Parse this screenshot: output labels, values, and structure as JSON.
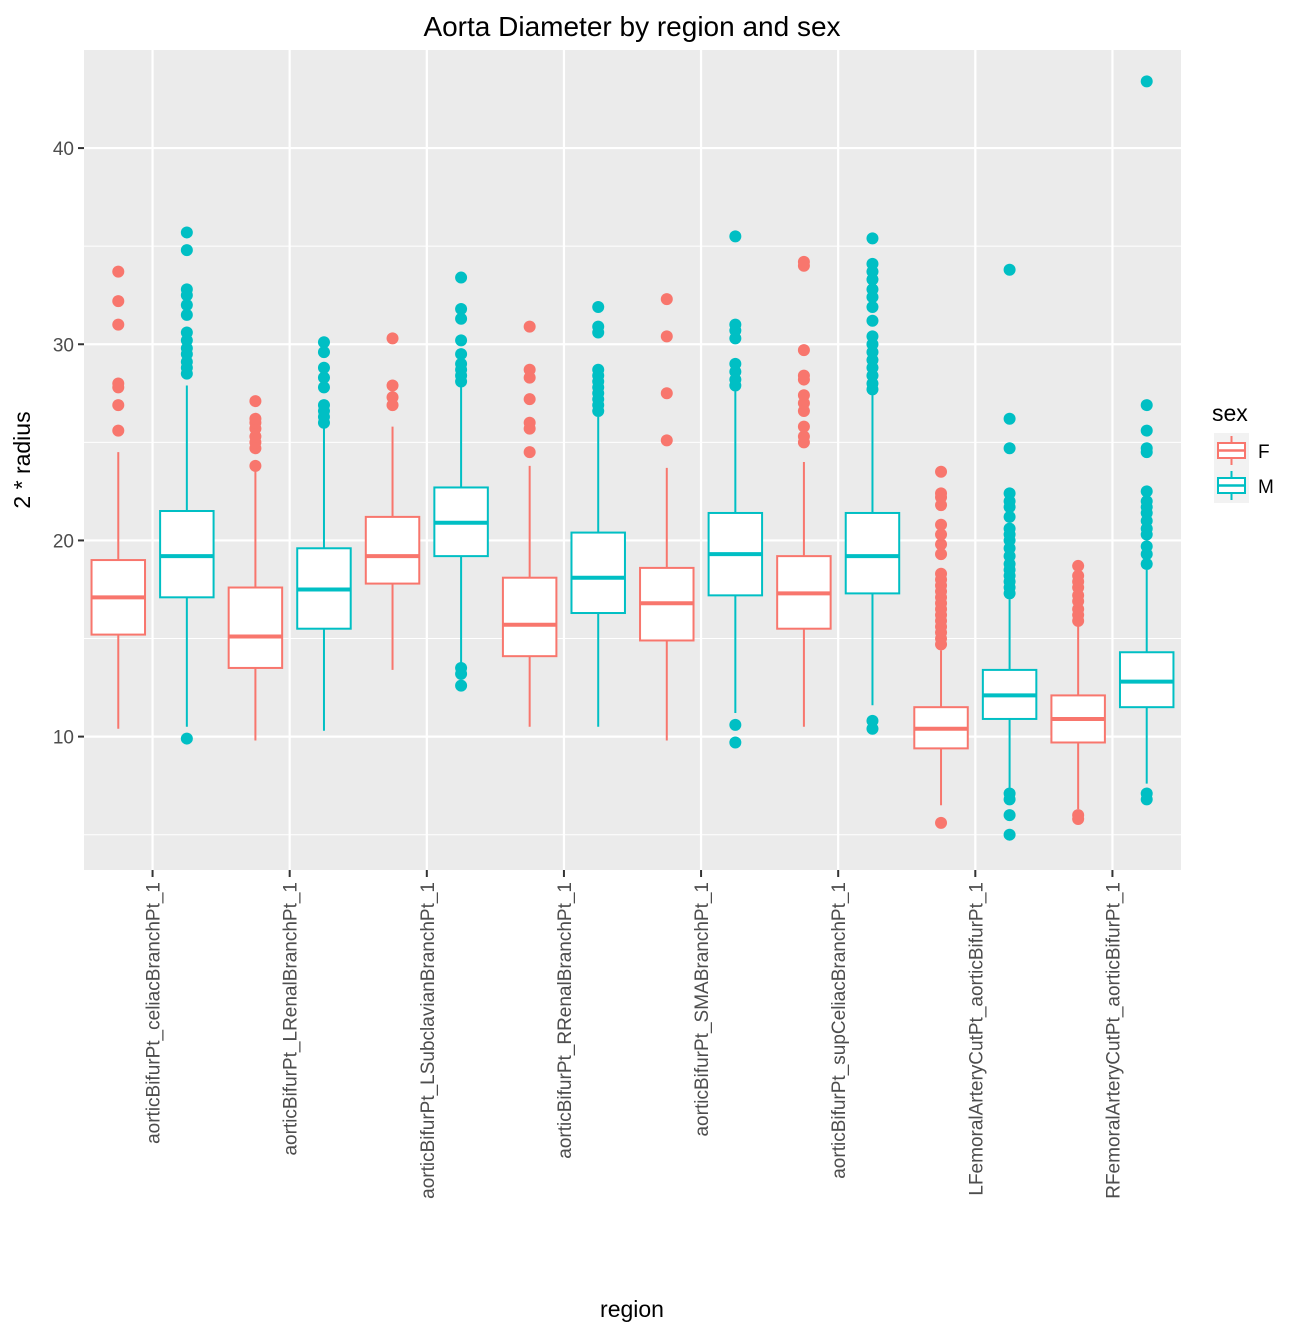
{
  "chart_data": {
    "type": "boxplot",
    "title": "Aorta Diameter by region and sex",
    "xlabel": "region",
    "ylabel": "2 * radius",
    "ylim": [
      3.2,
      45.0
    ],
    "yticks": [
      10,
      20,
      30,
      40
    ],
    "y_minor_ticks": [
      5,
      15,
      25,
      35
    ],
    "grid": true,
    "legend": {
      "title": "sex",
      "position": "right",
      "entries": [
        {
          "label": "F",
          "color": "#F8766D"
        },
        {
          "label": "M",
          "color": "#00BFC4"
        }
      ]
    },
    "categories": [
      "aorticBifurPt_celiacBranchPt_1",
      "aorticBifurPt_LRenalBranchPt_1",
      "aorticBifurPt_LSubclavianBranchPt_1",
      "aorticBifurPt_RRenalBranchPt_1",
      "aorticBifurPt_SMABranchPt_1",
      "aorticBifurPt_supCeliacBranchPt_1",
      "LFemoralArteryCutPt_aorticBifurPt_1",
      "RFemoralArteryCutPt_aorticBifurPt_1"
    ],
    "series": [
      {
        "name": "F",
        "color": "#F8766D",
        "boxes": [
          {
            "whisker_low": 10.4,
            "q1": 15.2,
            "median": 17.1,
            "q3": 19.0,
            "whisker_high": 24.5,
            "outliers": [
              25.6,
              26.9,
              27.8,
              28.0,
              31.0,
              32.2,
              33.7
            ]
          },
          {
            "whisker_low": 9.8,
            "q1": 13.5,
            "median": 15.1,
            "q3": 17.6,
            "whisker_high": 23.6,
            "outliers": [
              23.8,
              24.7,
              25.0,
              25.3,
              25.7,
              26.0,
              26.2,
              27.1
            ]
          },
          {
            "whisker_low": 13.4,
            "q1": 17.8,
            "median": 19.2,
            "q3": 21.2,
            "whisker_high": 25.8,
            "outliers": [
              26.9,
              27.3,
              27.9,
              30.3
            ]
          },
          {
            "whisker_low": 10.5,
            "q1": 14.1,
            "median": 15.7,
            "q3": 18.1,
            "whisker_high": 23.8,
            "outliers": [
              24.5,
              25.7,
              26.0,
              27.2,
              28.3,
              28.7,
              30.9
            ]
          },
          {
            "whisker_low": 9.8,
            "q1": 14.9,
            "median": 16.8,
            "q3": 18.6,
            "whisker_high": 23.7,
            "outliers": [
              25.1,
              27.5,
              30.4,
              32.3
            ]
          },
          {
            "whisker_low": 10.5,
            "q1": 15.5,
            "median": 17.3,
            "q3": 19.2,
            "whisker_high": 24.0,
            "outliers": [
              25.0,
              25.3,
              25.8,
              26.6,
              27.0,
              27.4,
              28.2,
              28.4,
              29.7,
              34.0,
              34.2
            ]
          },
          {
            "whisker_low": 6.5,
            "q1": 9.4,
            "median": 10.4,
            "q3": 11.5,
            "whisker_high": 14.4,
            "outliers": [
              5.6,
              14.7,
              15.0,
              15.3,
              15.6,
              15.9,
              16.2,
              16.5,
              16.8,
              17.1,
              17.4,
              17.7,
              18.0,
              18.3,
              19.3,
              19.8,
              20.3,
              20.8,
              21.8,
              22.2,
              22.4,
              23.5
            ]
          },
          {
            "whisker_low": 6.3,
            "q1": 9.7,
            "median": 10.9,
            "q3": 12.1,
            "whisker_high": 15.7,
            "outliers": [
              5.8,
              6.0,
              15.9,
              16.2,
              16.5,
              16.9,
              17.2,
              17.6,
              17.9,
              18.2,
              18.7
            ]
          }
        ]
      },
      {
        "name": "M",
        "color": "#00BFC4",
        "boxes": [
          {
            "whisker_low": 10.5,
            "q1": 17.1,
            "median": 19.2,
            "q3": 21.5,
            "whisker_high": 27.9,
            "outliers": [
              9.9,
              28.5,
              28.8,
              29.1,
              29.5,
              29.8,
              30.2,
              30.6,
              31.5,
              32.0,
              32.5,
              32.8,
              34.8,
              35.7
            ]
          },
          {
            "whisker_low": 10.3,
            "q1": 15.5,
            "median": 17.5,
            "q3": 19.6,
            "whisker_high": 25.8,
            "outliers": [
              26.0,
              26.3,
              26.6,
              26.9,
              27.8,
              28.3,
              28.8,
              29.6,
              30.1
            ]
          },
          {
            "whisker_low": 13.6,
            "q1": 19.2,
            "median": 20.9,
            "q3": 22.7,
            "whisker_high": 27.9,
            "outliers": [
              12.6,
              13.2,
              13.5,
              28.1,
              28.4,
              28.7,
              29.0,
              29.5,
              30.2,
              31.3,
              31.8,
              33.4
            ]
          },
          {
            "whisker_low": 10.5,
            "q1": 16.3,
            "median": 18.1,
            "q3": 20.4,
            "whisker_high": 26.3,
            "outliers": [
              26.6,
              26.9,
              27.2,
              27.5,
              27.8,
              28.1,
              28.4,
              28.7,
              30.6,
              30.9,
              31.9
            ]
          },
          {
            "whisker_low": 11.2,
            "q1": 17.2,
            "median": 19.3,
            "q3": 21.4,
            "whisker_high": 27.6,
            "outliers": [
              9.7,
              10.6,
              27.9,
              28.2,
              28.6,
              29.0,
              30.3,
              30.7,
              31.0,
              35.5
            ]
          },
          {
            "whisker_low": 11.6,
            "q1": 17.3,
            "median": 19.2,
            "q3": 21.4,
            "whisker_high": 27.5,
            "outliers": [
              10.4,
              10.8,
              27.7,
              28.0,
              28.4,
              28.8,
              29.2,
              29.6,
              30.0,
              30.4,
              31.2,
              31.9,
              32.4,
              32.8,
              33.3,
              33.7,
              34.1,
              35.4
            ]
          },
          {
            "whisker_low": 7.4,
            "q1": 10.9,
            "median": 12.1,
            "q3": 13.4,
            "whisker_high": 17.0,
            "outliers": [
              5.0,
              6.0,
              6.8,
              7.1,
              17.3,
              17.6,
              17.9,
              18.2,
              18.5,
              18.8,
              19.2,
              19.6,
              20.0,
              20.3,
              20.6,
              21.2,
              21.7,
              22.0,
              22.4,
              24.7,
              26.2,
              33.8
            ]
          },
          {
            "whisker_low": 7.6,
            "q1": 11.5,
            "median": 12.8,
            "q3": 14.3,
            "whisker_high": 18.5,
            "outliers": [
              6.8,
              7.1,
              18.8,
              19.3,
              19.7,
              20.3,
              20.6,
              21.0,
              21.4,
              21.7,
              22.0,
              22.5,
              24.5,
              24.7,
              25.6,
              26.9,
              43.4
            ]
          }
        ]
      }
    ]
  }
}
